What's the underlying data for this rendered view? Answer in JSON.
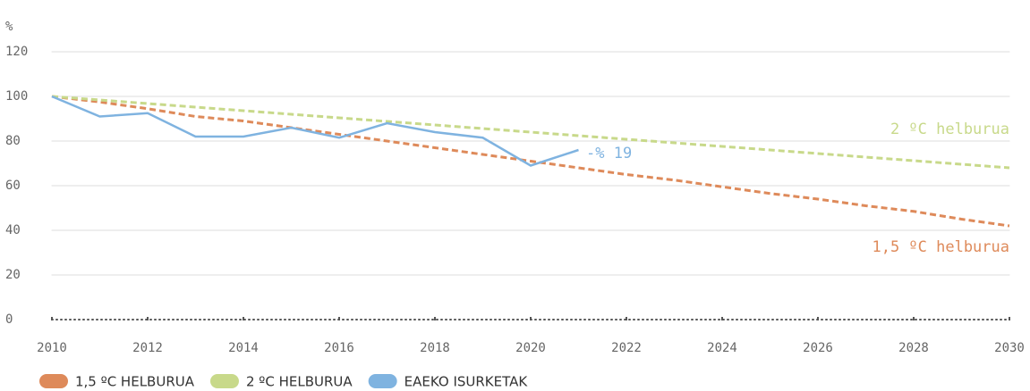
{
  "chart_data": {
    "type": "line",
    "y_label": "%",
    "x": [
      2010,
      2011,
      2012,
      2013,
      2014,
      2015,
      2016,
      2017,
      2018,
      2019,
      2020,
      2021,
      2022,
      2023,
      2024,
      2025,
      2026,
      2027,
      2028,
      2029,
      2030
    ],
    "series": [
      {
        "name": "1,5 ºC HELBURUA",
        "color": "#de8a5a",
        "dashed": true,
        "values": [
          100,
          97.5,
          94.5,
          91,
          89,
          86,
          83,
          80,
          77,
          74,
          71,
          68,
          65,
          62.5,
          59.5,
          56.5,
          54,
          51,
          48.5,
          45,
          42
        ]
      },
      {
        "name": "2 ºC HELBURUA",
        "color": "#c8d98a",
        "dashed": true,
        "values": [
          100,
          98.4,
          96.8,
          95.2,
          93.6,
          92,
          90.4,
          88.8,
          87.2,
          85.6,
          84,
          82.4,
          80.8,
          79.2,
          77.6,
          76,
          74.4,
          72.8,
          71.2,
          69.6,
          68
        ]
      },
      {
        "name": "EAEKO ISURKETAK",
        "color": "#7fb3e0",
        "dashed": false,
        "values": [
          100,
          91,
          92.5,
          82,
          82,
          86,
          81.5,
          88,
          84,
          81.5,
          69,
          76,
          null,
          null,
          null,
          null,
          null,
          null,
          null,
          null,
          null
        ]
      }
    ],
    "annotations": [
      {
        "text": "-% 19",
        "series": 2
      },
      {
        "text": "2 ºC helburua",
        "series": 1
      },
      {
        "text": "1,5 ºC helburua",
        "series": 0
      }
    ],
    "xlim": [
      2010,
      2030
    ],
    "xticks": [
      2010,
      2012,
      2014,
      2016,
      2018,
      2020,
      2022,
      2024,
      2026,
      2028,
      2030
    ],
    "ylim": [
      0,
      120
    ],
    "yticks": [
      0,
      20,
      40,
      60,
      80,
      100,
      120
    ],
    "grid": true,
    "legend": "bottom-left"
  }
}
